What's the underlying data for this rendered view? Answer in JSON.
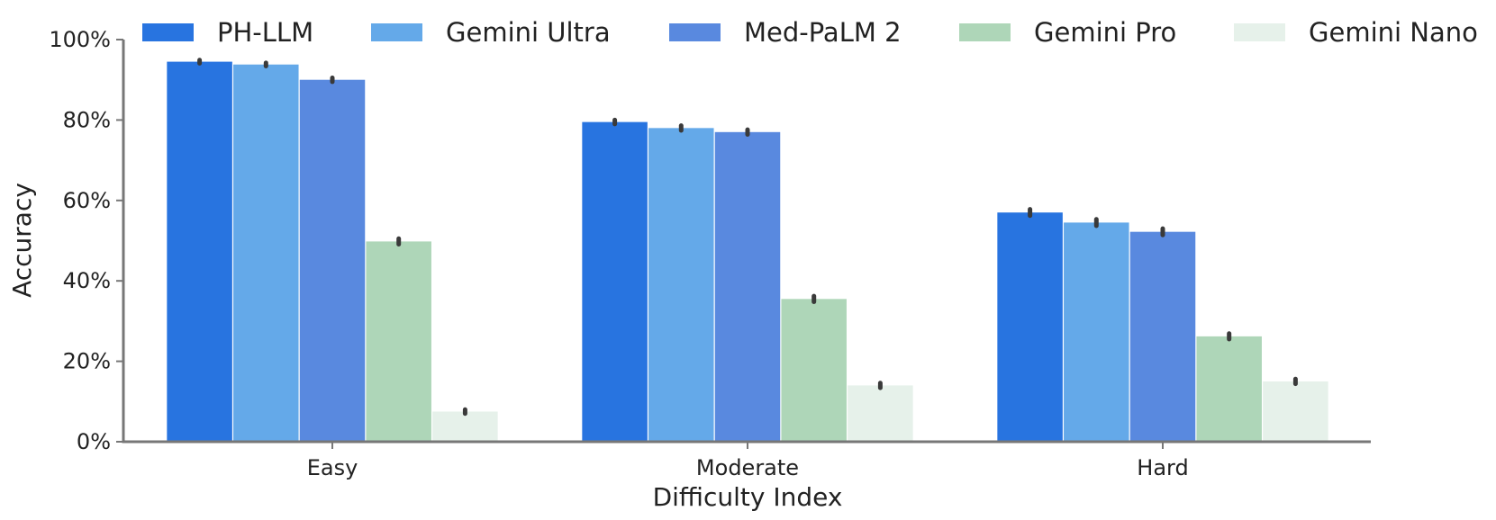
{
  "chart_data": {
    "type": "bar",
    "title": "",
    "xlabel": "Difficulty Index",
    "ylabel": "Accuracy",
    "categories": [
      "Easy",
      "Moderate",
      "Hard"
    ],
    "ylim": [
      0,
      100
    ],
    "yticks": [
      0,
      20,
      40,
      60,
      80,
      100
    ],
    "ytick_labels": [
      "0%",
      "20%",
      "40%",
      "60%",
      "80%",
      "100%"
    ],
    "grid": false,
    "legend_position": "top",
    "series": [
      {
        "name": "PH-LLM",
        "color": "#2874e0",
        "values": [
          94.5,
          79.5,
          57.0
        ],
        "err": [
          0.4,
          0.5,
          0.8
        ]
      },
      {
        "name": "Gemini Ultra",
        "color": "#64a9e9",
        "values": [
          93.8,
          78.0,
          54.5
        ],
        "err": [
          0.4,
          0.6,
          0.8
        ]
      },
      {
        "name": "Med-PaLM 2",
        "color": "#5989df",
        "values": [
          90.0,
          77.0,
          52.2
        ],
        "err": [
          0.5,
          0.6,
          0.8
        ]
      },
      {
        "name": "Gemini Pro",
        "color": "#aed6b8",
        "values": [
          49.8,
          35.5,
          26.2
        ],
        "err": [
          0.7,
          0.7,
          0.7
        ]
      },
      {
        "name": "Gemini Nano",
        "color": "#e6f1ea",
        "values": [
          7.5,
          14.0,
          15.0
        ],
        "err": [
          0.5,
          0.6,
          0.6
        ]
      }
    ]
  }
}
